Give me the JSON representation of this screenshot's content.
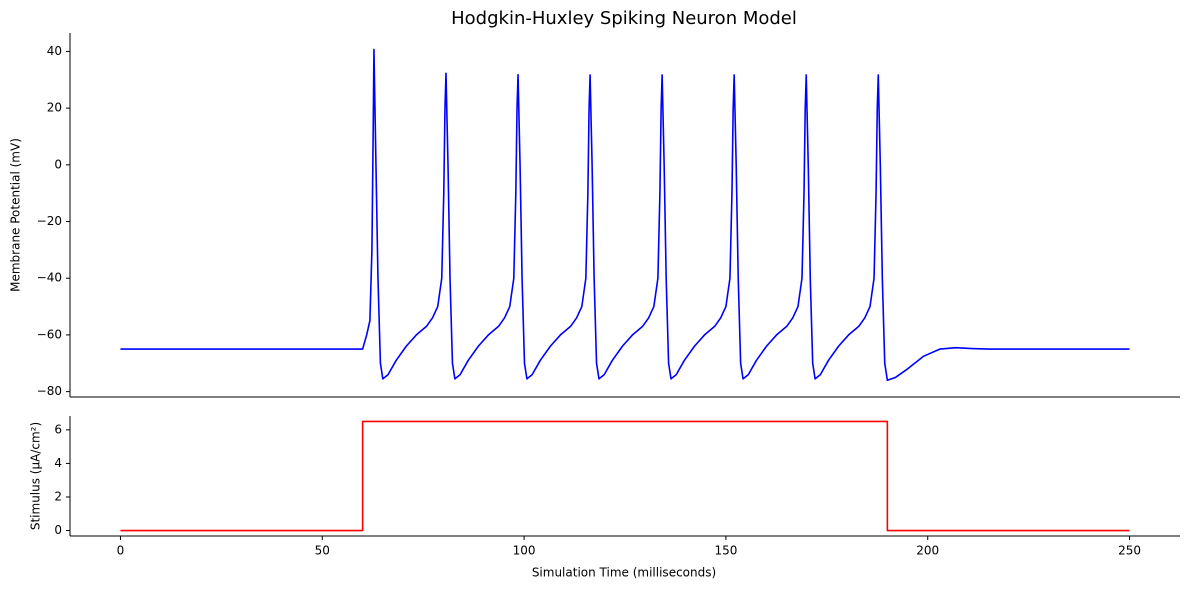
{
  "chart_data": [
    {
      "type": "line",
      "title": "Hodgkin-Huxley Spiking Neuron Model",
      "ylabel": "Membrane Potential (mV)",
      "xlim": [
        -12.5,
        262.5
      ],
      "ylim": [
        -81.9,
        46.5
      ],
      "yticks": [
        {
          "value": -80,
          "label": "−80"
        },
        {
          "value": -60,
          "label": "−60"
        },
        {
          "value": -40,
          "label": "−40"
        },
        {
          "value": -20,
          "label": "−20"
        },
        0,
        20,
        40
      ],
      "series": [
        {
          "color": "#0000ff",
          "x": [
            0,
            60,
            61,
            61.8,
            62.3,
            62.6,
            62.8,
            63.3,
            63.8,
            64.4,
            65,
            66.3,
            68.3,
            70.8,
            73.3,
            75.8,
            77.3,
            78.6,
            79.6,
            80.1,
            80.4,
            80.65,
            81.15,
            81.65,
            82.25,
            82.85,
            84.15,
            86.15,
            88.65,
            91.15,
            93.65,
            95.15,
            96.45,
            97.45,
            97.95,
            98.25,
            98.5,
            99,
            99.5,
            100.1,
            100.7,
            102,
            104,
            106.5,
            109,
            111.5,
            113,
            114.3,
            115.3,
            115.8,
            116.1,
            116.35,
            116.85,
            117.35,
            117.95,
            118.55,
            119.85,
            121.85,
            124.35,
            126.85,
            129.35,
            130.85,
            132.15,
            133.15,
            133.65,
            133.95,
            134.2,
            134.7,
            135.2,
            135.8,
            136.4,
            137.7,
            139.7,
            142.2,
            144.7,
            147.2,
            148.7,
            150,
            151,
            151.5,
            151.8,
            152.05,
            152.55,
            153.05,
            153.65,
            154.25,
            155.55,
            157.55,
            160.05,
            162.55,
            165.05,
            166.55,
            167.85,
            168.85,
            169.35,
            169.65,
            169.9,
            170.4,
            170.9,
            171.5,
            172.1,
            173.4,
            175.4,
            177.9,
            180.4,
            182.9,
            184.4,
            185.7,
            186.7,
            187.2,
            187.5,
            187.75,
            188.25,
            188.75,
            189.35,
            190,
            192,
            195,
            199,
            203,
            207,
            211,
            215,
            250
          ],
          "values": [
            -65,
            -65,
            -60,
            -55,
            -30,
            10,
            40.7,
            0,
            -40,
            -70,
            -75.5,
            -74,
            -69,
            -64,
            -60,
            -57,
            -54,
            -50,
            -40,
            -10,
            20,
            32.3,
            0,
            -40,
            -70,
            -75.5,
            -74,
            -69,
            -64,
            -60,
            -57,
            -54,
            -50,
            -40,
            -10,
            20,
            31.8,
            0,
            -40,
            -70,
            -75.5,
            -74,
            -69,
            -64,
            -60,
            -57,
            -54,
            -50,
            -40,
            -10,
            20,
            31.7,
            0,
            -40,
            -70,
            -75.5,
            -74,
            -69,
            -64,
            -60,
            -57,
            -54,
            -50,
            -40,
            -10,
            20,
            31.7,
            0,
            -40,
            -70,
            -75.5,
            -74,
            -69,
            -64,
            -60,
            -57,
            -54,
            -50,
            -40,
            -10,
            20,
            31.7,
            0,
            -40,
            -70,
            -75.5,
            -74,
            -69,
            -64,
            -60,
            -57,
            -54,
            -50,
            -40,
            -10,
            20,
            31.7,
            0,
            -40,
            -70,
            -75.5,
            -74,
            -69,
            -64,
            -60,
            -57,
            -54,
            -50,
            -40,
            -10,
            20,
            31.7,
            0,
            -40,
            -70,
            -76,
            -75,
            -72,
            -67.5,
            -65,
            -64.5,
            -64.8,
            -65,
            -65
          ]
        }
      ]
    },
    {
      "type": "line",
      "xlabel": "Simulation Time (milliseconds)",
      "ylabel": "Stimulus (µA/cm²)",
      "xlim": [
        -12.5,
        262.5
      ],
      "ylim": [
        -0.325,
        6.825
      ],
      "xticks": [
        0,
        50,
        100,
        150,
        200,
        250
      ],
      "yticks": [
        0,
        2,
        4,
        6
      ],
      "series": [
        {
          "color": "#ff0000",
          "x": [
            0,
            60,
            60,
            190,
            190,
            250
          ],
          "values": [
            0,
            0,
            6.5,
            6.5,
            0,
            0
          ]
        }
      ]
    }
  ]
}
